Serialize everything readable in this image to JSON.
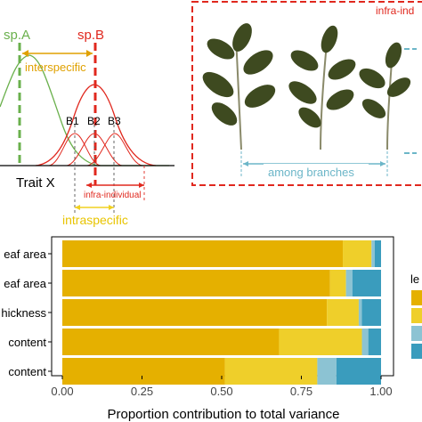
{
  "panel_a": {
    "sp_a": "sp.A",
    "sp_b": "sp.B",
    "interspecific": "interspecific",
    "b1": "B1",
    "b2": "B2",
    "b3": "B3",
    "x_label": "Trait X",
    "infra_individual": "infra-individual",
    "intraspecific": "intraspecific"
  },
  "panel_b": {
    "infra_label": "infra-ind",
    "among_branches": "among branches"
  },
  "colors": {
    "sp_a": "#6ab04c",
    "sp_b": "#e0281e",
    "interspecific": "#e0a100",
    "intraspecific": "#f0d020",
    "among_branches": "#6cb6c8",
    "panel_border": "#e0281e",
    "leaf": "#3e4a20",
    "stem": "#8a8a6a"
  },
  "chart_data": {
    "type": "bar",
    "orientation": "horizontal",
    "stacked": true,
    "categories": [
      "eaf area",
      "eaf area",
      "hickness",
      "content",
      "content"
    ],
    "series": [
      {
        "color": "#e5b000",
        "values": [
          0.88,
          0.84,
          0.83,
          0.68,
          0.51
        ]
      },
      {
        "color": "#efcf2a",
        "values": [
          0.09,
          0.05,
          0.1,
          0.26,
          0.29
        ]
      },
      {
        "color": "#8cc3d3",
        "values": [
          0.01,
          0.02,
          0.01,
          0.02,
          0.06
        ]
      },
      {
        "color": "#3a9cbd",
        "values": [
          0.02,
          0.09,
          0.06,
          0.04,
          0.14
        ]
      }
    ],
    "xticks": [
      "0.00",
      "0.25",
      "0.50",
      "0.75",
      "1.00"
    ],
    "xlim": [
      0,
      1
    ],
    "xlabel": "Proportion contribution to total variance",
    "legend_title": "le",
    "legend_position": "right"
  }
}
